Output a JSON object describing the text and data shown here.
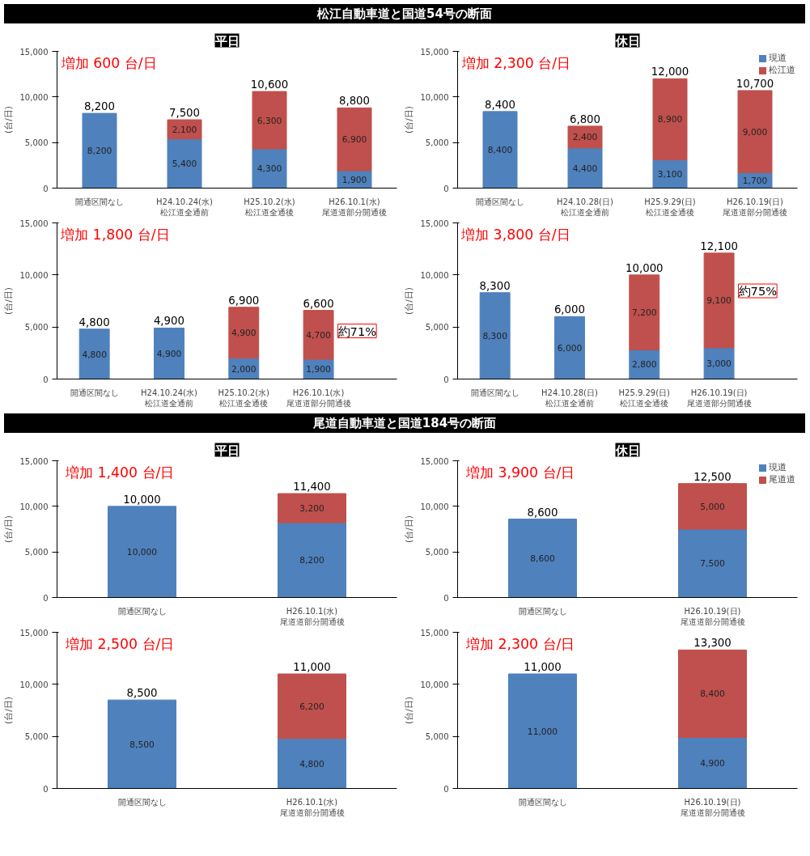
{
  "chart_data": [
    {
      "type": "bar",
      "title": "松江自動車道と国道54号の断面",
      "subtitle": "平日",
      "ylabel": "(台/日)",
      "stacked": true,
      "categories": [
        "開通区間なし",
        "H24.10.24(水)\n松江道全通前",
        "H25.10.2(水)\n松江道全通後",
        "H26.10.1(水)\n尾道道部分開通後"
      ],
      "series": [
        {
          "color": "#4f81bd",
          "values": [
            8200,
            5400,
            4300,
            1900
          ],
          "value_labels": [
            "8,200",
            "5,400",
            "4,300",
            "1,900"
          ]
        },
        {
          "color": "#c0504d",
          "values": [
            null,
            2100,
            6300,
            6900
          ],
          "value_labels": [
            null,
            "2,100",
            "6,300",
            "6,900"
          ]
        }
      ],
      "totals": [
        "8,200",
        "7,500",
        "10,600",
        "8,800"
      ],
      "ylim": [
        0,
        15000
      ],
      "yticks": [
        0,
        {
          "value": 5000,
          "label": "5,000"
        },
        {
          "value": 10000,
          "label": "10,000"
        },
        {
          "value": 15000,
          "label": "15,000"
        }
      ],
      "annotations": [
        "増加 600 台/日"
      ]
    },
    {
      "type": "bar",
      "subtitle": "休日",
      "ylabel": "(台/日)",
      "stacked": true,
      "legend": "top right",
      "categories": [
        "開通区間なし",
        "H24.10.28(日)\n松江道全通前",
        "H25.9.29(日)\n松江道全通後",
        "H26.10.19(日)\n尾道道部分開通後"
      ],
      "series": [
        {
          "name": "現道",
          "color": "#4f81bd",
          "values": [
            8400,
            4400,
            3100,
            1700
          ],
          "value_labels": [
            "8,400",
            "4,400",
            "3,100",
            "1,700"
          ]
        },
        {
          "name": "松江道",
          "color": "#c0504d",
          "values": [
            null,
            2400,
            8900,
            9000
          ],
          "value_labels": [
            null,
            "2,400",
            "8,900",
            "9,000"
          ]
        }
      ],
      "totals": [
        "8,400",
        "6,800",
        "12,000",
        "10,700"
      ],
      "ylim": [
        0,
        15000
      ],
      "yticks": [
        0,
        {
          "value": 5000,
          "label": "5,000"
        },
        {
          "value": 10000,
          "label": "10,000"
        },
        {
          "value": 15000,
          "label": "15,000"
        }
      ],
      "annotations": [
        "増加 2,300 台/日"
      ]
    },
    {
      "type": "bar",
      "ylabel": "(台/日)",
      "stacked": true,
      "categories": [
        "開通区間なし",
        "H24.10.24(水)\n松江道全通前",
        "H25.10.2(水)\n松江道全通後",
        "H26.10.1(水)\n尾道道部分開通後"
      ],
      "series": [
        {
          "color": "#4f81bd",
          "values": [
            4800,
            4900,
            2000,
            1900
          ],
          "value_labels": [
            "4,800",
            "4,900",
            "2,000",
            "1,900"
          ]
        },
        {
          "color": "#c0504d",
          "values": [
            null,
            null,
            4900,
            4700
          ],
          "value_labels": [
            null,
            null,
            "4,900",
            "4,700"
          ]
        }
      ],
      "totals": [
        "4,800",
        "4,900",
        "6,900",
        "6,600"
      ],
      "ylim": [
        0,
        15000
      ],
      "yticks": [
        0,
        {
          "value": 5000,
          "label": "5,000"
        },
        {
          "value": 10000,
          "label": "10,000"
        },
        {
          "value": 15000,
          "label": "15,000"
        }
      ],
      "annotations": [
        "増加 1,800 台/日",
        "約71%"
      ]
    },
    {
      "type": "bar",
      "ylabel": "(台/日)",
      "stacked": true,
      "categories": [
        "開通区間なし",
        "H24.10.28(日)\n松江道全通前",
        "H25.9.29(日)\n松江道全通後",
        "H26.10.19(日)\n尾道道部分開通後"
      ],
      "series": [
        {
          "color": "#4f81bd",
          "values": [
            8300,
            6000,
            2800,
            3000
          ],
          "value_labels": [
            "8,300",
            "6,000",
            "2,800",
            "3,000"
          ]
        },
        {
          "color": "#c0504d",
          "values": [
            null,
            null,
            7200,
            9100
          ],
          "value_labels": [
            null,
            null,
            "7,200",
            "9,100"
          ]
        }
      ],
      "totals": [
        "8,300",
        "6,000",
        "10,000",
        "12,100"
      ],
      "ylim": [
        0,
        15000
      ],
      "yticks": [
        0,
        {
          "value": 5000,
          "label": "5,000"
        },
        {
          "value": 10000,
          "label": "10,000"
        },
        {
          "value": 15000,
          "label": "15,000"
        }
      ],
      "annotations": [
        "増加 3,800 台/日",
        "約75%"
      ]
    },
    {
      "type": "bar",
      "title": "尾道自動車道と国道184号の断面",
      "subtitle": "平日",
      "ylabel": "(台/日)",
      "stacked": true,
      "categories": [
        "開通区間なし",
        "H26.10.1(水)\n尾道道部分開通後"
      ],
      "series": [
        {
          "color": "#4f81bd",
          "values": [
            10000,
            8200
          ],
          "value_labels": [
            "10,000",
            "8,200"
          ]
        },
        {
          "color": "#c0504d",
          "values": [
            null,
            3200
          ],
          "value_labels": [
            null,
            "3,200"
          ]
        }
      ],
      "totals": [
        "10,000",
        "11,400"
      ],
      "ylim": [
        0,
        15000
      ],
      "yticks": [
        0,
        {
          "value": 5000,
          "label": "5,000"
        },
        {
          "value": 10000,
          "label": "10,000"
        },
        {
          "value": 15000,
          "label": "15,000"
        }
      ],
      "annotations": [
        "増加 1,400 台/日"
      ]
    },
    {
      "type": "bar",
      "subtitle": "休日",
      "ylabel": "(台/日)",
      "stacked": true,
      "legend": "top right",
      "categories": [
        "開通区間なし",
        "H26.10.19(日)\n尾道道部分開通後"
      ],
      "series": [
        {
          "name": "現道",
          "color": "#4f81bd",
          "values": [
            8600,
            7500
          ],
          "value_labels": [
            "8,600",
            "7,500"
          ]
        },
        {
          "name": "尾道道",
          "color": "#c0504d",
          "values": [
            null,
            5000
          ],
          "value_labels": [
            null,
            "5,000"
          ]
        }
      ],
      "totals": [
        "8,600",
        "12,500"
      ],
      "ylim": [
        0,
        15000
      ],
      "yticks": [
        0,
        {
          "value": 5000,
          "label": "5,000"
        },
        {
          "value": 10000,
          "label": "10,000"
        },
        {
          "value": 15000,
          "label": "15,000"
        }
      ],
      "annotations": [
        "増加 3,900 台/日"
      ]
    },
    {
      "type": "bar",
      "ylabel": "(台/日)",
      "stacked": true,
      "categories": [
        "開通区間なし",
        "H26.10.1(水)\n尾道道部分開通後"
      ],
      "series": [
        {
          "color": "#4f81bd",
          "values": [
            8500,
            4800
          ],
          "value_labels": [
            "8,500",
            "4,800"
          ]
        },
        {
          "color": "#c0504d",
          "values": [
            null,
            6200
          ],
          "value_labels": [
            null,
            "6,200"
          ]
        }
      ],
      "totals": [
        "8,500",
        "11,000"
      ],
      "ylim": [
        0,
        15000
      ],
      "yticks": [
        0,
        {
          "value": 5000,
          "label": "5,000"
        },
        {
          "value": 10000,
          "label": "10,000"
        },
        {
          "value": 15000,
          "label": "15,000"
        }
      ],
      "annotations": [
        "増加 2,500 台/日"
      ]
    },
    {
      "type": "bar",
      "ylabel": "(台/日)",
      "stacked": true,
      "categories": [
        "開通区間なし",
        "H26.10.19(日)\n尾道道部分開通後"
      ],
      "series": [
        {
          "color": "#4f81bd",
          "values": [
            11000,
            4900
          ],
          "value_labels": [
            "11,000",
            "4,900"
          ]
        },
        {
          "color": "#c0504d",
          "values": [
            null,
            8400
          ],
          "value_labels": [
            null,
            "8,400"
          ]
        }
      ],
      "totals": [
        "11,000",
        "13,300"
      ],
      "ylim": [
        0,
        15000
      ],
      "yticks": [
        0,
        {
          "value": 5000,
          "label": "5,000"
        },
        {
          "value": 10000,
          "label": "10,000"
        },
        {
          "value": 15000,
          "label": "15,000"
        }
      ],
      "annotations": [
        "増加 2,300 台/日"
      ]
    }
  ]
}
